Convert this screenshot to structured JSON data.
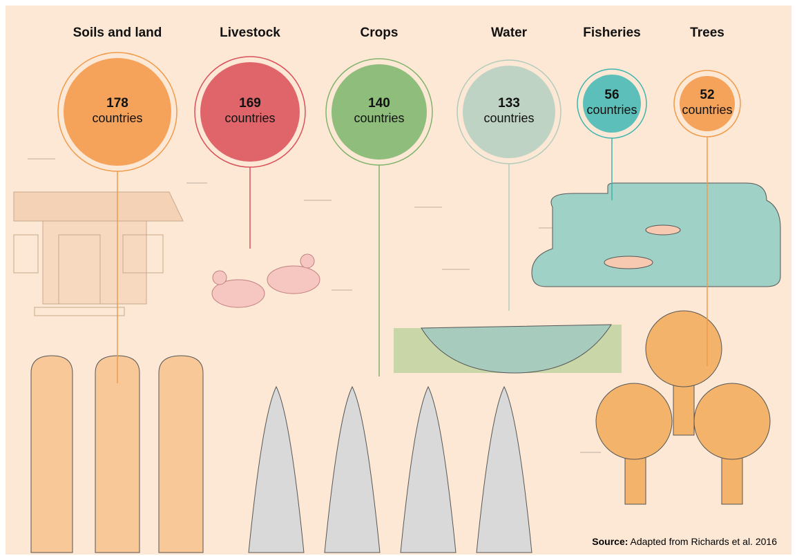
{
  "items": [
    {
      "title": "Soils and land",
      "value": "178",
      "unit": "countries",
      "color": "#f5a25a",
      "ring": "#f09a4a"
    },
    {
      "title": "Livestock",
      "value": "169",
      "unit": "countries",
      "color": "#e0656b",
      "ring": "#d9505a"
    },
    {
      "title": "Crops",
      "value": "140",
      "unit": "countries",
      "color": "#8fbd7b",
      "ring": "#7fb36b"
    },
    {
      "title": "Water",
      "value": "133",
      "unit": "countries",
      "color": "#bfd3c4",
      "ring": "#b3cbbb"
    },
    {
      "title": "Fisheries",
      "value": "56",
      "unit": "countries",
      "color": "#5cbfb9",
      "ring": "#3fb3ad"
    },
    {
      "title": "Trees",
      "value": "52",
      "unit": "countries",
      "color": "#f5a25a",
      "ring": "#f09a4a"
    }
  ],
  "source": {
    "label": "Source:",
    "text": "Adapted from Richards et al. 2016"
  }
}
